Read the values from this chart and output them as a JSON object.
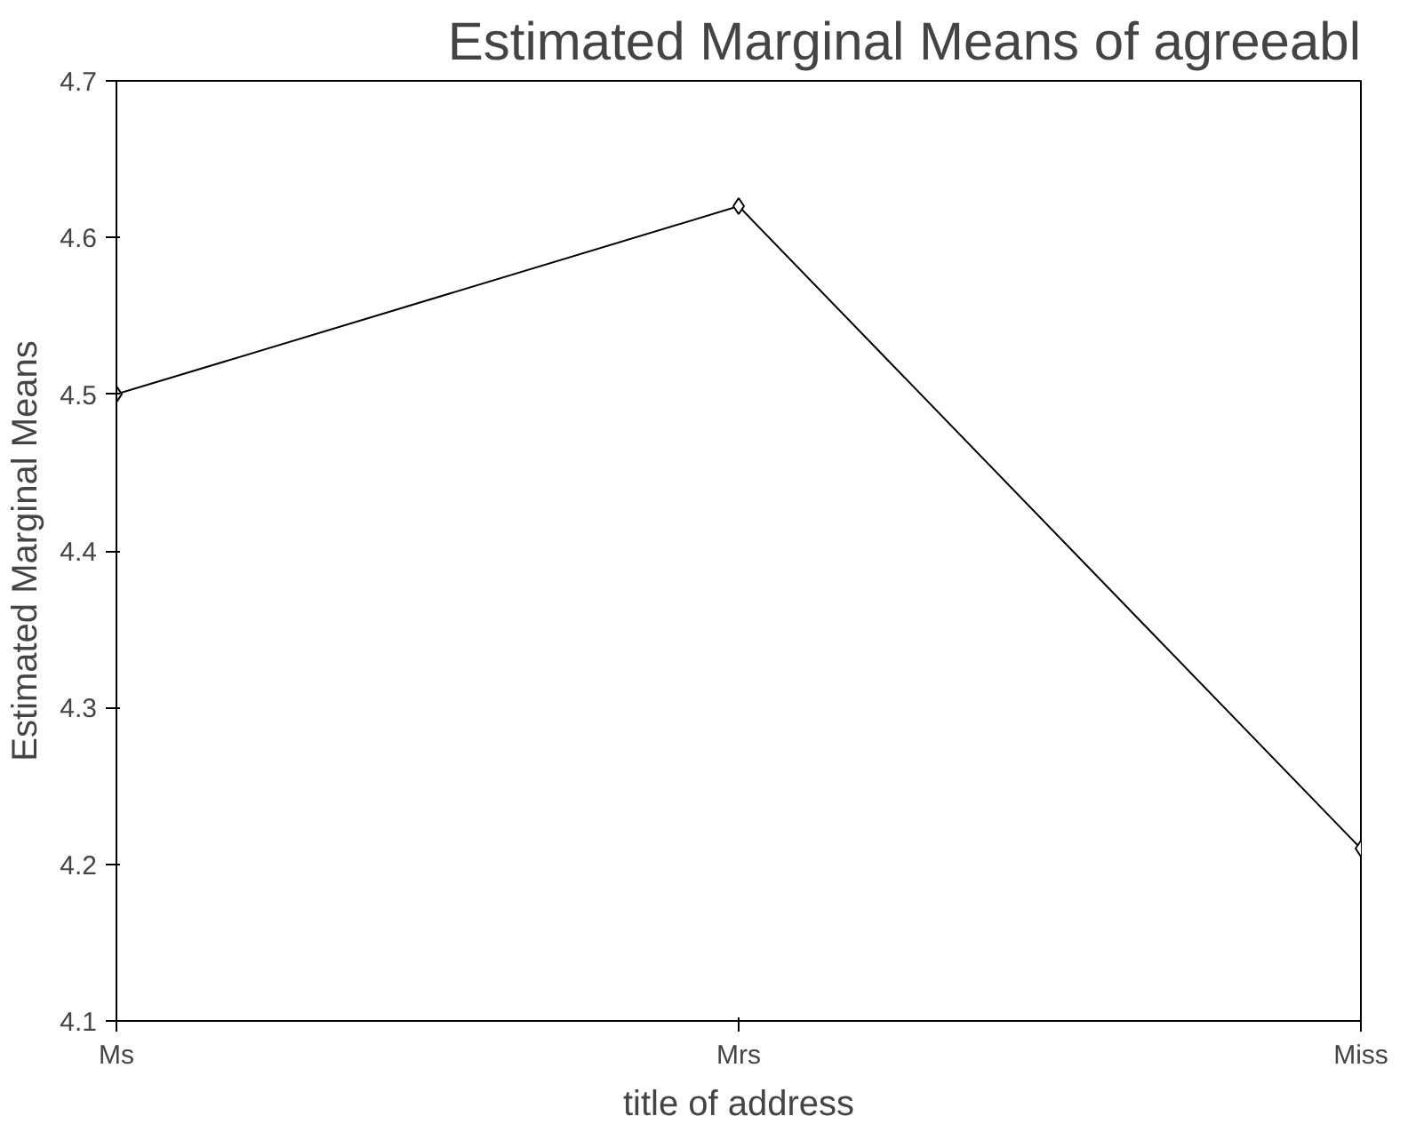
{
  "chart_data": {
    "type": "line",
    "title": "Estimated Marginal Means of agreeabl",
    "xlabel": "title of address",
    "ylabel": "Estimated Marginal Means",
    "categories": [
      "Ms",
      "Mrs",
      "Miss"
    ],
    "series": [
      {
        "color": "#000000",
        "values": [
          4.5,
          4.62,
          4.21
        ]
      }
    ],
    "ylim": [
      4.1,
      4.7
    ],
    "yticks": [
      4.1,
      4.2,
      4.3,
      4.4,
      4.5,
      4.6,
      4.7
    ],
    "grid": false,
    "marker": "diamond",
    "line_style": "solid"
  }
}
